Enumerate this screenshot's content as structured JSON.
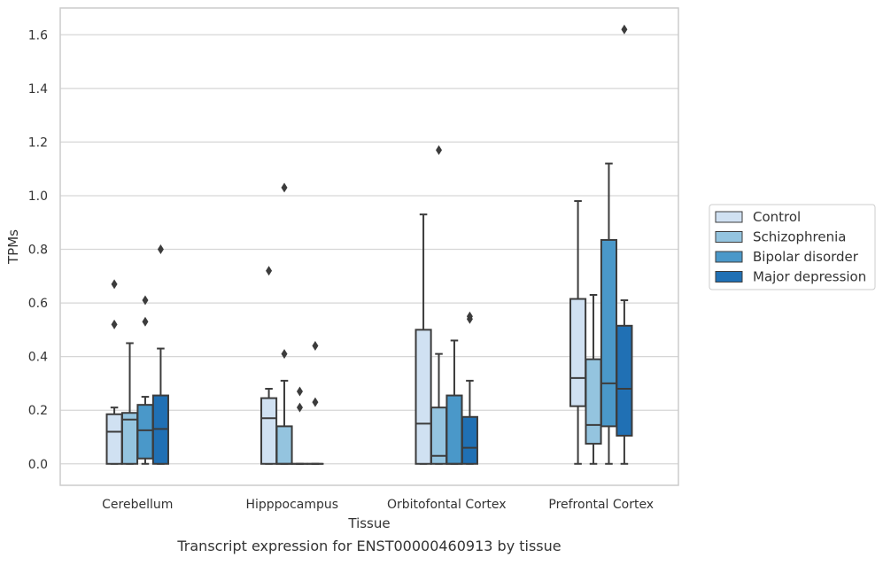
{
  "chart_data": {
    "type": "box",
    "xlabel": "Tissue",
    "ylabel": "TPMs",
    "caption": "Transcript expression for ENST00000460913 by tissue",
    "ylim": [
      -0.08,
      1.7
    ],
    "yticks": [
      0.0,
      0.2,
      0.4,
      0.6,
      0.8,
      1.0,
      1.2,
      1.4,
      1.6
    ],
    "ytick_labels": [
      "0.0",
      "0.2",
      "0.4",
      "0.6",
      "0.8",
      "1.0",
      "1.2",
      "1.4",
      "1.6"
    ],
    "grid": "horizontal",
    "legend_position": "right",
    "categories": [
      "Cerebellum",
      "Hipppocampus",
      "Orbitofontal Cortex",
      "Prefrontal Cortex"
    ],
    "series": [
      {
        "name": "Control",
        "color": "#d0e1f2",
        "boxes": [
          {
            "whislo": 0.0,
            "q1": 0.0,
            "med": 0.12,
            "q3": 0.185,
            "whishi": 0.21,
            "fliers": [
              0.52,
              0.67
            ]
          },
          {
            "whislo": 0.0,
            "q1": 0.0,
            "med": 0.17,
            "q3": 0.245,
            "whishi": 0.28,
            "fliers": [
              0.72
            ]
          },
          {
            "whislo": 0.0,
            "q1": 0.0,
            "med": 0.15,
            "q3": 0.5,
            "whishi": 0.93,
            "fliers": []
          },
          {
            "whislo": 0.0,
            "q1": 0.215,
            "med": 0.32,
            "q3": 0.615,
            "whishi": 0.98,
            "fliers": []
          }
        ]
      },
      {
        "name": "Schizophrenia",
        "color": "#94c4df",
        "boxes": [
          {
            "whislo": 0.0,
            "q1": 0.0,
            "med": 0.165,
            "q3": 0.19,
            "whishi": 0.45,
            "fliers": []
          },
          {
            "whislo": 0.0,
            "q1": 0.0,
            "med": 0.0,
            "q3": 0.14,
            "whishi": 0.31,
            "fliers": [
              0.41,
              1.03
            ]
          },
          {
            "whislo": 0.0,
            "q1": 0.0,
            "med": 0.03,
            "q3": 0.21,
            "whishi": 0.41,
            "fliers": [
              1.17
            ]
          },
          {
            "whislo": 0.0,
            "q1": 0.075,
            "med": 0.145,
            "q3": 0.39,
            "whishi": 0.63,
            "fliers": []
          }
        ]
      },
      {
        "name": "Bipolar disorder",
        "color": "#4a98c9",
        "boxes": [
          {
            "whislo": 0.0,
            "q1": 0.02,
            "med": 0.125,
            "q3": 0.22,
            "whishi": 0.25,
            "fliers": [
              0.53,
              0.61
            ]
          },
          {
            "whislo": 0.0,
            "q1": 0.0,
            "med": 0.0,
            "q3": 0.0,
            "whishi": 0.0,
            "fliers": [
              0.21,
              0.27
            ]
          },
          {
            "whislo": 0.0,
            "q1": 0.0,
            "med": 0.0,
            "q3": 0.255,
            "whishi": 0.46,
            "fliers": []
          },
          {
            "whislo": 0.0,
            "q1": 0.14,
            "med": 0.3,
            "q3": 0.835,
            "whishi": 1.12,
            "fliers": []
          }
        ]
      },
      {
        "name": "Major depression",
        "color": "#2070b4",
        "boxes": [
          {
            "whislo": 0.0,
            "q1": 0.0,
            "med": 0.13,
            "q3": 0.255,
            "whishi": 0.43,
            "fliers": [
              0.8
            ]
          },
          {
            "whislo": 0.0,
            "q1": 0.0,
            "med": 0.0,
            "q3": 0.0,
            "whishi": 0.0,
            "fliers": [
              0.23,
              0.44
            ]
          },
          {
            "whislo": 0.0,
            "q1": 0.0,
            "med": 0.06,
            "q3": 0.175,
            "whishi": 0.31,
            "fliers": [
              0.54,
              0.55
            ]
          },
          {
            "whislo": 0.0,
            "q1": 0.105,
            "med": 0.28,
            "q3": 0.515,
            "whishi": 0.61,
            "fliers": [
              1.62
            ]
          }
        ]
      }
    ]
  }
}
